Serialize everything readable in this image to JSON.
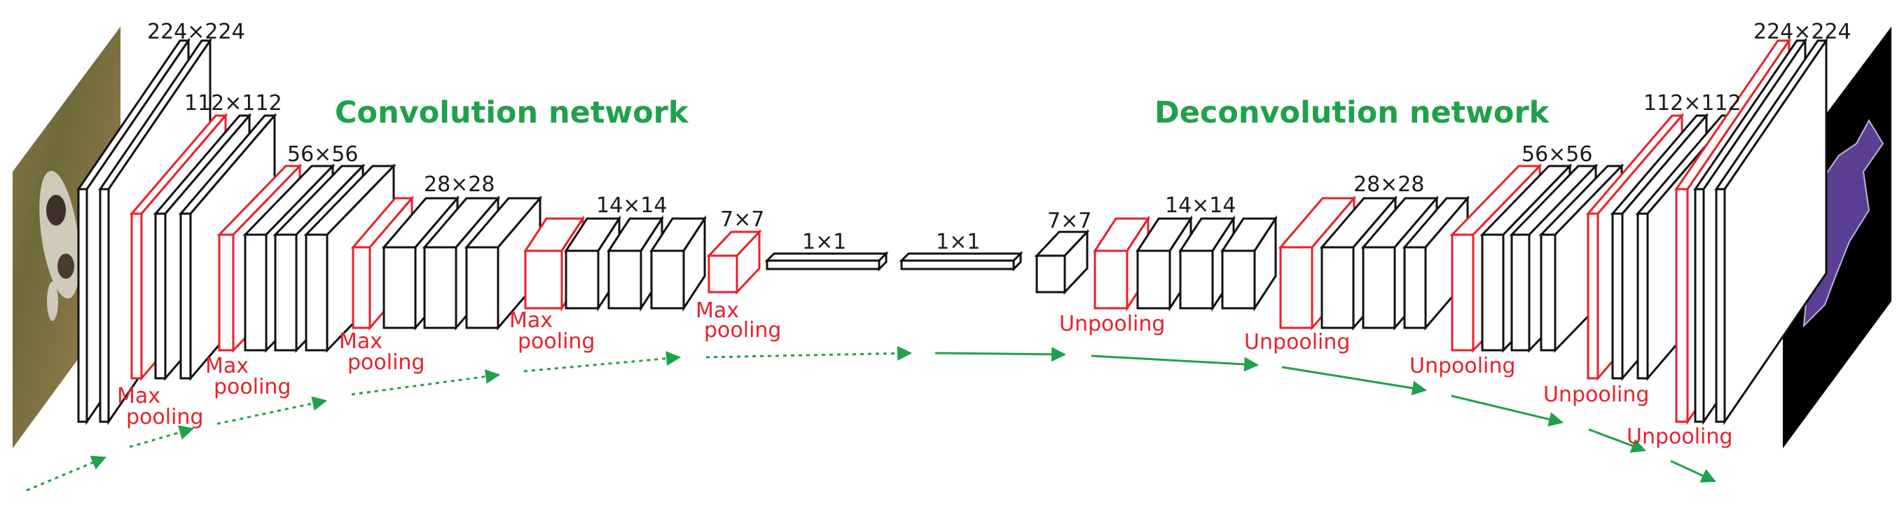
{
  "titles": {
    "encoder": "Convolution network",
    "decoder": "Deconvolution network"
  },
  "dims": {
    "enc_224": "224×224",
    "enc_112": "112×112",
    "enc_56": "56×56",
    "enc_28": "28×28",
    "enc_14": "14×14",
    "enc_7": "7×7",
    "fc_1": "1×1",
    "fc_2": "1×1",
    "dec_7": "7×7",
    "dec_14": "14×14",
    "dec_28": "28×28",
    "dec_56": "56×56",
    "dec_112": "112×112",
    "dec_224": "224×224"
  },
  "labels": {
    "max": "Max",
    "pooling": "pooling",
    "unpooling": "Unpooling"
  },
  "colors": {
    "black": "#111111",
    "red": "#e8212b",
    "green": "#1fa14a",
    "grass": "#7d6a3c",
    "mask_bg": "#000000",
    "mask_fg": "#5a3f93"
  }
}
